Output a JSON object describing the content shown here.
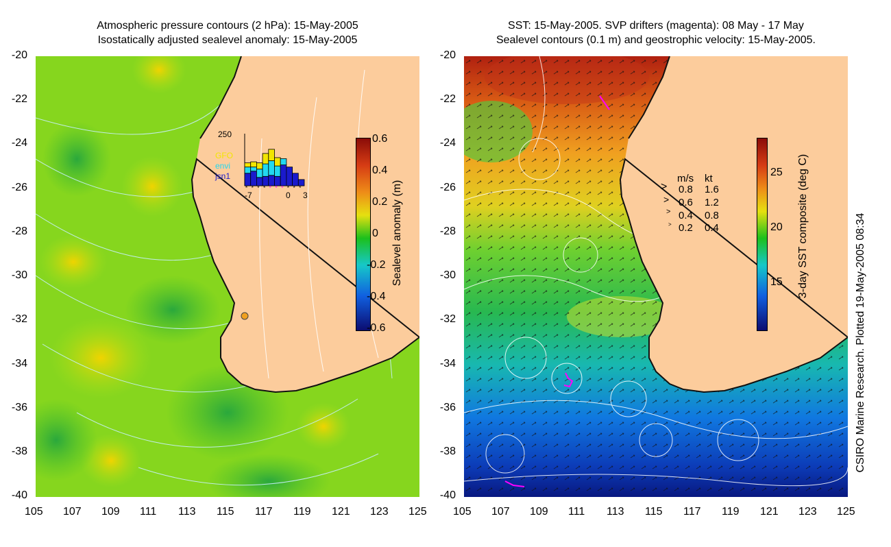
{
  "left_panel": {
    "title_line1": "Atmospheric pressure contours (2 hPa): 15-May-2005",
    "title_line2": "Isostatically adjusted sealevel anomaly: 15-May-2005",
    "y_ticks": [
      "-20",
      "-22",
      "-24",
      "-26",
      "-28",
      "-30",
      "-32",
      "-34",
      "-36",
      "-38",
      "-40"
    ],
    "x_ticks": [
      "105",
      "107",
      "109",
      "111",
      "113",
      "115",
      "117",
      "119",
      "121",
      "123",
      "125"
    ],
    "colorbar": {
      "label": "Sealevel anomaly (m)",
      "ticks": [
        "0.6",
        "0.4",
        "0.2",
        "0",
        "-0.2",
        "-0.4",
        "-0.6"
      ]
    },
    "inset": {
      "ymax_label": "250",
      "legend": [
        {
          "label": "GFO",
          "color": "#f2e600"
        },
        {
          "label": "envi",
          "color": "#22d8f0"
        },
        {
          "label": "jsn1",
          "color": "#1a1acc"
        }
      ],
      "x_ticks": [
        "-7",
        "0",
        "3"
      ],
      "bars": [
        {
          "day": -7,
          "gfo": 20,
          "envi": 30,
          "jsn1": 60
        },
        {
          "day": -6,
          "gfo": 25,
          "envi": 20,
          "jsn1": 70
        },
        {
          "day": -5,
          "gfo": 30,
          "envi": 40,
          "jsn1": 40
        },
        {
          "day": -4,
          "gfo": 50,
          "envi": 60,
          "jsn1": 45
        },
        {
          "day": -3,
          "gfo": 55,
          "envi": 70,
          "jsn1": 50
        },
        {
          "day": -2,
          "gfo": 40,
          "envi": 50,
          "jsn1": 45
        },
        {
          "day": -1,
          "gfo": 0,
          "envi": 30,
          "jsn1": 100
        },
        {
          "day": 0,
          "gfo": 0,
          "envi": 0,
          "jsn1": 90
        },
        {
          "day": 1,
          "gfo": 0,
          "envi": 0,
          "jsn1": 60
        },
        {
          "day": 2,
          "gfo": 0,
          "envi": 0,
          "jsn1": 30
        }
      ]
    }
  },
  "right_panel": {
    "title_line1": "SST: 15-May-2005. SVP drifters (magenta): 08 May - 17 May",
    "title_line2": "Sealevel contours (0.1 m) and geostrophic velocity: 15-May-2005.",
    "y_ticks": [
      "-20",
      "-22",
      "-24",
      "-26",
      "-28",
      "-30",
      "-32",
      "-34",
      "-36",
      "-38",
      "-40"
    ],
    "x_ticks": [
      "105",
      "107",
      "109",
      "111",
      "113",
      "115",
      "117",
      "119",
      "121",
      "123",
      "125"
    ],
    "colorbar": {
      "label": "3-day SST composite (deg C)",
      "ticks": [
        "25",
        "20",
        "15"
      ]
    },
    "velocity_legend": {
      "header_ms": "m/s",
      "header_kt": "kt",
      "rows": [
        {
          "ms": "0.8",
          "kt": "1.6"
        },
        {
          "ms": "0.6",
          "kt": "1.2"
        },
        {
          "ms": "0.4",
          "kt": "0.8"
        },
        {
          "ms": "0.2",
          "kt": "0.4"
        }
      ]
    }
  },
  "credit": "CSIRO Marine Research. Plotted 19-May-2005 08:34",
  "colors": {
    "land": "#fccc9c",
    "ocean_left": "#7ed41c",
    "sst_warm": "#b02010",
    "sst_cool": "#1050d0",
    "drifter": "#ff00ff"
  }
}
